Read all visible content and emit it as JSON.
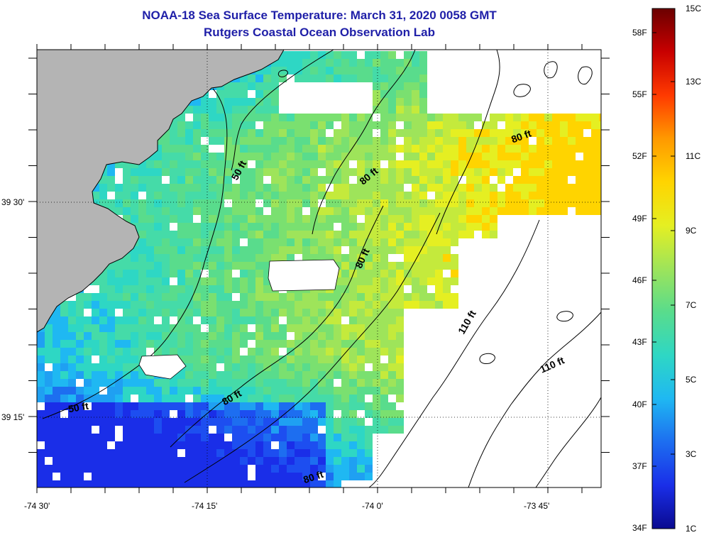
{
  "title": {
    "line1": "NOAA-18 Sea Surface Temperature:  March 31, 2020 0058 GMT",
    "line2": "Rutgers Coastal Ocean Observation Lab"
  },
  "axes": {
    "x_ticks": [
      "-74 30'",
      "-74 15'",
      "-74 0'",
      "-73 45'"
    ],
    "y_ticks": [
      "39 30'",
      "39 15'"
    ]
  },
  "contour_labels": [
    "50 ft",
    "80 ft",
    "80 ft",
    "80 ft",
    "110 ft",
    "110 ft",
    "50 ft",
    "80 ft",
    "80 ft"
  ],
  "colorbar": {
    "fahrenheit": [
      "58F",
      "55F",
      "52F",
      "49F",
      "46F",
      "43F",
      "40F",
      "37F",
      "34F"
    ],
    "celsius": [
      "15C",
      "13C",
      "11C",
      "9C",
      "7C",
      "5C",
      "3C",
      "1C"
    ],
    "colors": [
      "#6b0000",
      "#c80000",
      "#ff3a00",
      "#ff9900",
      "#ffd400",
      "#e5ef22",
      "#9ee45a",
      "#59dc8c",
      "#2ed7c4",
      "#1fb8f2",
      "#1d6ef0",
      "#1a2ee8",
      "#0a0a90"
    ]
  },
  "colors": {
    "land": "#b4b4b4",
    "title": "#1f1fa8"
  }
}
